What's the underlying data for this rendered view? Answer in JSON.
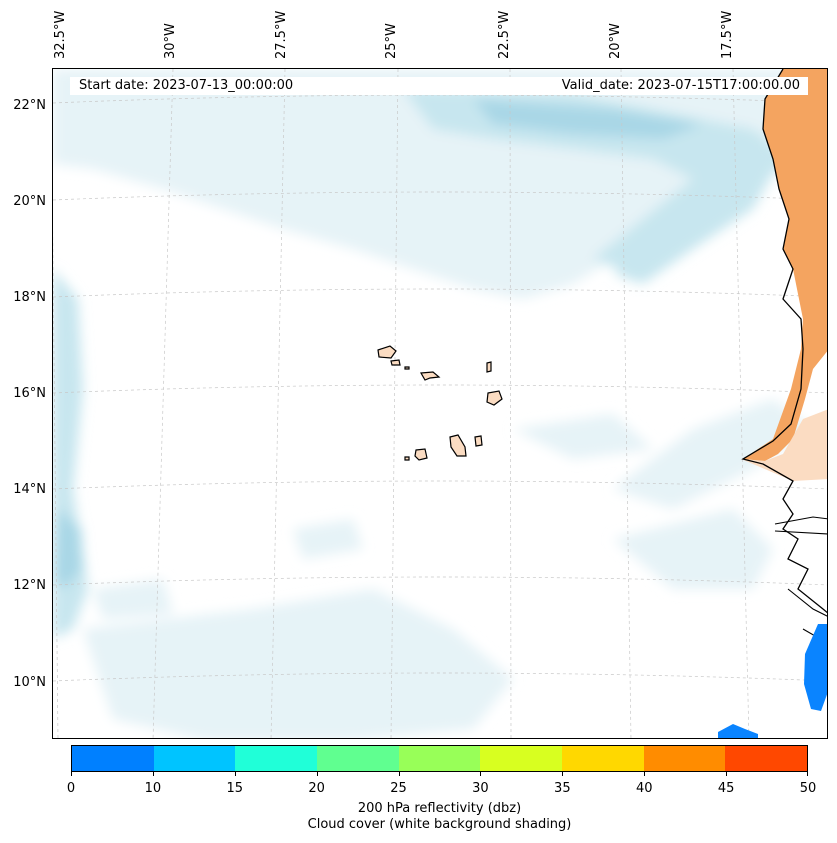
{
  "header": {
    "start_date": "Start date: 2023-07-13_00:00:00",
    "valid_date": "Valid_date: 2023-07-15T17:00:00.00"
  },
  "axes": {
    "lon_labels": [
      "32.5°W",
      "30°W",
      "27.5°W",
      "25°W",
      "22.5°W",
      "20°W",
      "17.5°W"
    ],
    "lat_labels": [
      "22°N",
      "20°N",
      "18°N",
      "16°N",
      "14°N",
      "12°N",
      "10°N"
    ]
  },
  "colorbar": {
    "ticks": [
      "0",
      "10",
      "15",
      "20",
      "25",
      "30",
      "35",
      "40",
      "45",
      "50"
    ],
    "colors": [
      "#0080ff",
      "#00c4ff",
      "#20ffd8",
      "#60ff90",
      "#98ff58",
      "#d8ff20",
      "#ffd800",
      "#ff8c00",
      "#ff4800"
    ],
    "label_line1": "200 hPa reflectivity (dbz)",
    "label_line2": "Cloud cover (white background shading)"
  },
  "colors": {
    "cloud_light": "#e6f3f7",
    "cloud_mid": "#c7e6ef",
    "cloud_dark": "#a9d7e6",
    "land_orange": "#f4a460",
    "land_light": "#fbdcc2",
    "reflectivity_blue": "#0a84ff"
  }
}
